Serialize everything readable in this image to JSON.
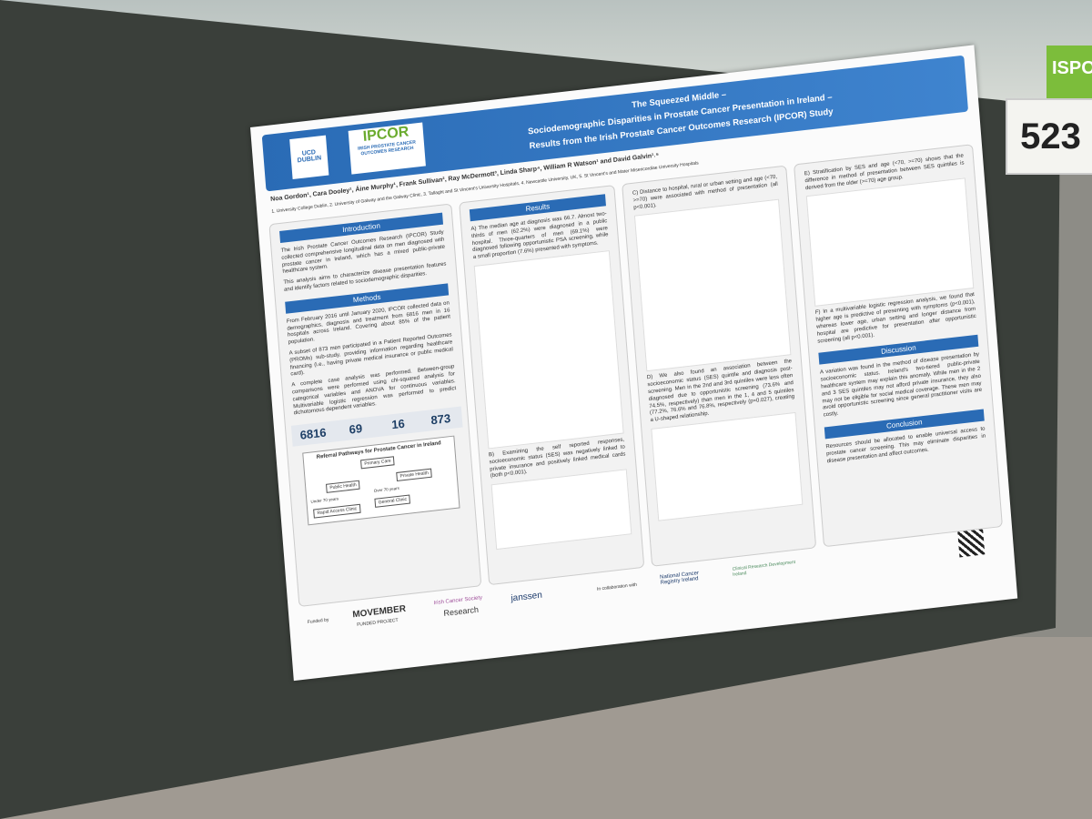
{
  "sign": {
    "booth": "523",
    "banner": "ISPO"
  },
  "poster": {
    "header": {
      "logos": [
        "UCD DUBLIN",
        "IPCOR",
        "IRISH PROSTATE CANCER OUTCOMES RESEARCH"
      ],
      "title": [
        "The Squeezed Middle –",
        "Sociodemographic Disparities in Prostate Cancer Presentation in Ireland –",
        "Results from the Irish Prostate Cancer Outcomes Research (IPCOR) Study"
      ]
    },
    "authors": "Noa Gordon¹, Cara Dooley¹, Áine Murphy¹, Frank Sullivan², Ray McDermott³, Linda Sharp⁴, William R Watson¹ and David Galvin¹˒⁵",
    "affiliations": "1. University College Dublin, 2. University of Galway and the Galway Clinic, 3. Tallaght and St Vincent's University Hospitals, 4. Newcastle University, UK, 5. St Vincent's and Mater Misericordiae University Hospitals",
    "introduction": {
      "heading": "Introduction",
      "paragraphs": [
        "The Irish Prostate Cancer Outcomes Research (IPCOR) Study collected comprehensive longitudinal data on men diagnosed with prostate cancer in Ireland, which has a mixed public-private healthcare system.",
        "This analysis aims to characterize disease presentation features and identify factors related to sociodemographic disparities."
      ]
    },
    "methods": {
      "heading": "Methods",
      "paragraphs": [
        "From February 2016 until January 2020, IPCOR collected data on demographics, diagnosis and treatment from 6816 men in 16 hospitals across Ireland. Covering about 85% of the patient population.",
        "A subset of 873 men participated in a Patient Reported Outcomes (PROMs) sub-study, providing information regarding healthcare financing (i.e., having private medical insurance or public medical card).",
        "A complete case analysis was performed. Between-group comparisons were performed using chi-squared analysis for categorical variables and ANOVA for continuous variables. Multivariable logistic regression was performed to predict dichotomous dependent variables."
      ]
    },
    "stats": [
      6816,
      69,
      16,
      873
    ],
    "referral": {
      "title": "Referral Pathways for Prostate Cancer in Ireland",
      "nodes": [
        "Primary Care",
        "Public Health",
        "Private Health",
        "Rapid Access Clinic",
        "General Clinic"
      ],
      "edges": [
        "Under 70 years",
        "Over 70 years"
      ]
    },
    "results": {
      "heading": "Results",
      "a": "A) The median age at diagnosis was 66.7. Almost two-thirds of men (62.2%) were diagnosed in a public hospital. Three-quarters of men (69.1%) were diagnosed following opportunistic PSA screening, while a small proportion (7.6%) presented with symptoms.",
      "b": "B) Examining the self reported responses, socioeconomic status (SES) was negatively linked to private insurance and positively linked medical cards (both p<0.001).",
      "c": "C) Distance to hospital, rural or urban setting and age (<70, >=70) were associated with method of presentation (all p<0.001).",
      "d": "D) We also found an association between the socioeconomic status (SES) quintile and diagnosis post-screening. Men in the 2nd and 3rd quintiles were less often diagnosed due to opportunistic screening (73.6% and 74.5%, respectively) than men in the 1, 4 and 5 quintiles (77.2%, 76.6% and 76.8%, respectively (p=0.027), creating a U-shaped relationship.",
      "e": "E) Stratification by SES and age (<70, >=70) shows that the difference in method of presentation between SES quintiles is derived from the older (>=70) age group.",
      "f": "F) In a multivariable logistic regression analysis, we found that higher age is predictive of presenting with symptoms (p<0.001), whereas lower age, urban setting and longer distance from hospital are predictive for presentation after opportunistic screening (all p<0.001)."
    },
    "discussion": {
      "heading": "Discussion",
      "text": "A variation was found in the method of disease presentation by socioeconomic status. Ireland's two-tiered public-private healthcare system may explain this anomaly. While men in the 2 and 3 SES quintiles may not afford private insurance, they also may not be eligible for social medical coverage. These men may avoid opportunistic screening since general practitioner visits are costly."
    },
    "conclusion": {
      "heading": "Conclusion",
      "text": "Resources should be allocated to enable universal access to prostate cancer screening. This may eliminate disparities in disease presentation and affect outcomes."
    },
    "funded_by": "Funded by",
    "funders": [
      "MOVEMBER",
      "FUNDED PROJECT",
      "Irish Cancer Society",
      "Research",
      "janssen"
    ],
    "collaboration": "In collaboration with",
    "partners": [
      "National Cancer Registry Ireland",
      "Clinical Research Development Ireland"
    ]
  }
}
